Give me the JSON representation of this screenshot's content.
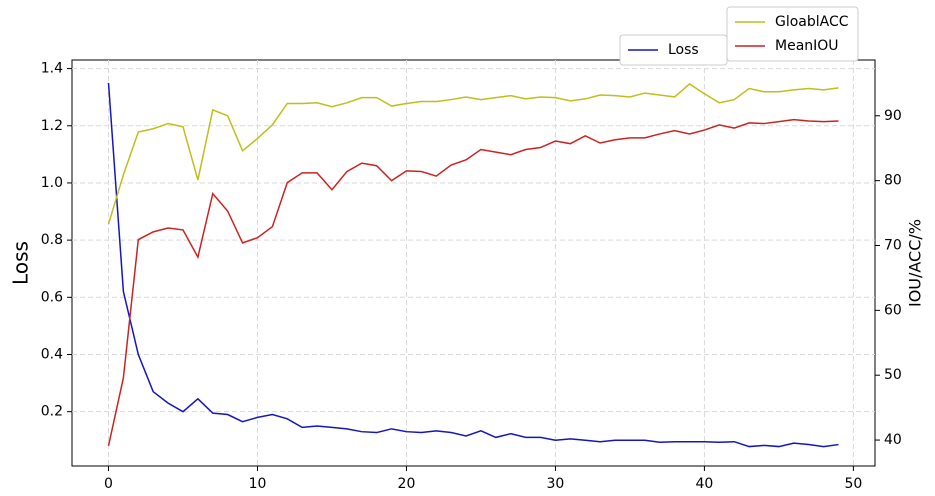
{
  "chart_data": {
    "type": "line",
    "x": [
      0,
      1,
      2,
      3,
      4,
      5,
      6,
      7,
      8,
      9,
      10,
      11,
      12,
      13,
      14,
      15,
      16,
      17,
      18,
      19,
      20,
      21,
      22,
      23,
      24,
      25,
      26,
      27,
      28,
      29,
      30,
      31,
      32,
      33,
      34,
      35,
      36,
      37,
      38,
      39,
      40,
      41,
      42,
      43,
      44,
      45,
      46,
      47,
      48,
      49
    ],
    "series": [
      {
        "name": "Loss",
        "color": "#1515c0",
        "values": [
          1.35,
          0.62,
          0.4,
          0.27,
          0.23,
          0.2,
          0.245,
          0.195,
          0.19,
          0.165,
          0.18,
          0.19,
          0.175,
          0.145,
          0.15,
          0.145,
          0.14,
          0.13,
          0.127,
          0.14,
          0.13,
          0.127,
          0.133,
          0.127,
          0.115,
          0.133,
          0.11,
          0.123,
          0.11,
          0.11,
          0.1,
          0.105,
          0.1,
          0.095,
          0.1,
          0.1,
          0.1,
          0.093,
          0.095,
          0.095,
          0.095,
          0.093,
          0.095,
          0.078,
          0.082,
          0.078,
          0.09,
          0.085,
          0.078,
          0.085
        ]
      },
      {
        "name": "GloablACC",
        "color": "#bfbf1a",
        "axis": "y2",
        "values": [
          73.3,
          80.9,
          87.5,
          88,
          88.8,
          88.3,
          80.1,
          90.9,
          90,
          84.6,
          86.5,
          88.6,
          91.9,
          91.9,
          92,
          91.4,
          92,
          92.8,
          92.8,
          91.5,
          91.9,
          92.2,
          92.2,
          92.5,
          92.9,
          92.5,
          92.8,
          93.1,
          92.6,
          92.9,
          92.8,
          92.3,
          92.6,
          93.2,
          93.1,
          92.9,
          93.5,
          93.2,
          92.9,
          94.9,
          93.4,
          92,
          92.5,
          94.2,
          93.7,
          93.7,
          94,
          94.2,
          94,
          94.3
        ]
      },
      {
        "name": "MeanIOU",
        "color": "#cc2222",
        "axis": "y2",
        "values": [
          39.1,
          49.6,
          70.9,
          72.1,
          72.7,
          72.4,
          68.2,
          78,
          75.3,
          70.4,
          71.2,
          72.9,
          79.7,
          81.2,
          81.2,
          78.6,
          81.4,
          82.7,
          82.3,
          80,
          81.5,
          81.4,
          80.7,
          82.4,
          83.2,
          84.8,
          84.4,
          84,
          84.8,
          85.1,
          86.1,
          85.7,
          86.9,
          85.8,
          86.3,
          86.6,
          86.6,
          87.2,
          87.7,
          87.2,
          87.8,
          88.6,
          88.1,
          88.9,
          88.8,
          89.1,
          89.4,
          89.2,
          89.1,
          89.2
        ]
      }
    ],
    "ylabel": "Loss",
    "y2label": "IOU/ACC/%",
    "xlim": [
      -2.45,
      51.45
    ],
    "xticks": [
      0,
      10,
      20,
      30,
      40,
      50
    ],
    "ylim": [
      0.01,
      1.43
    ],
    "yticks": [
      0.2,
      0.4,
      0.6,
      0.8,
      {
        "value": 1.0,
        "label": "1.0"
      },
      1.2,
      1.4
    ],
    "y2lim": [
      36,
      98.6
    ],
    "y2ticks": [
      40,
      50,
      60,
      70,
      80,
      90
    ],
    "grid": true,
    "legend": "upper right"
  }
}
